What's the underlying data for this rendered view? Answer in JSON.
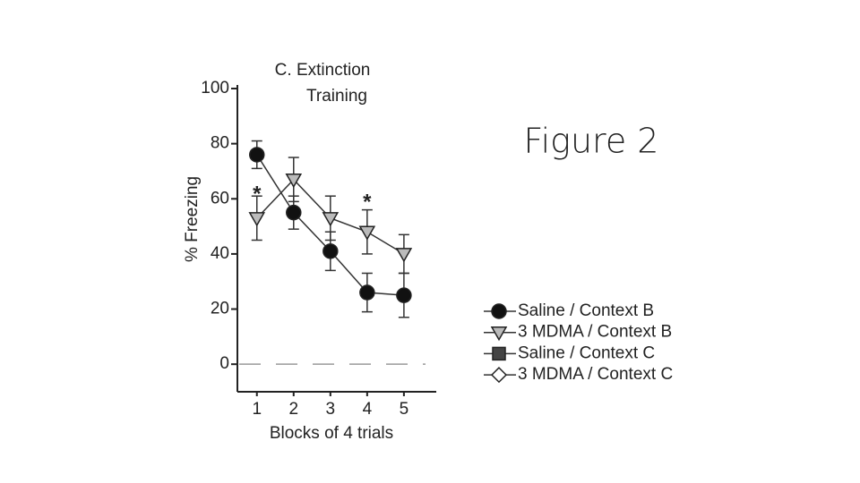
{
  "slide_title": "Figure 2",
  "chart_data": {
    "type": "line",
    "title": [
      "C. Extinction",
      "Training"
    ],
    "x_label": "Blocks of 4 trials",
    "y_label": "% Freezing",
    "x": [
      1,
      2,
      3,
      4,
      5
    ],
    "xlim": [
      0.47,
      5.88
    ],
    "xticks": [
      1,
      2,
      3,
      4,
      5
    ],
    "ylim": [
      -10,
      100
    ],
    "yticks": [
      0,
      20,
      40,
      60,
      80,
      100
    ],
    "reference_line": 0,
    "series": [
      {
        "name": "Saline / Context B",
        "color": "#111111",
        "marker": "circle",
        "values": [
          76,
          55,
          41,
          26,
          25
        ],
        "errors": [
          5,
          6,
          7,
          7,
          8
        ]
      },
      {
        "name": "3 MDMA / Context B",
        "color": "#bbbbbb",
        "marker": "triangle-down",
        "values": [
          53,
          67,
          53,
          48,
          40
        ],
        "errors": [
          8,
          8,
          8,
          8,
          7
        ]
      },
      {
        "name": "Saline / Context C",
        "color": "#444444",
        "marker": "square",
        "values": [
          null,
          null,
          null,
          null,
          null
        ]
      },
      {
        "name": "3 MDMA / Context C",
        "color": "#ffffff",
        "marker": "diamond",
        "values": [
          null,
          null,
          null,
          null,
          null
        ]
      }
    ],
    "annotations": [
      {
        "text": "*",
        "x": 1,
        "y": 64
      },
      {
        "text": "*",
        "x": 4,
        "y": 61
      }
    ]
  }
}
